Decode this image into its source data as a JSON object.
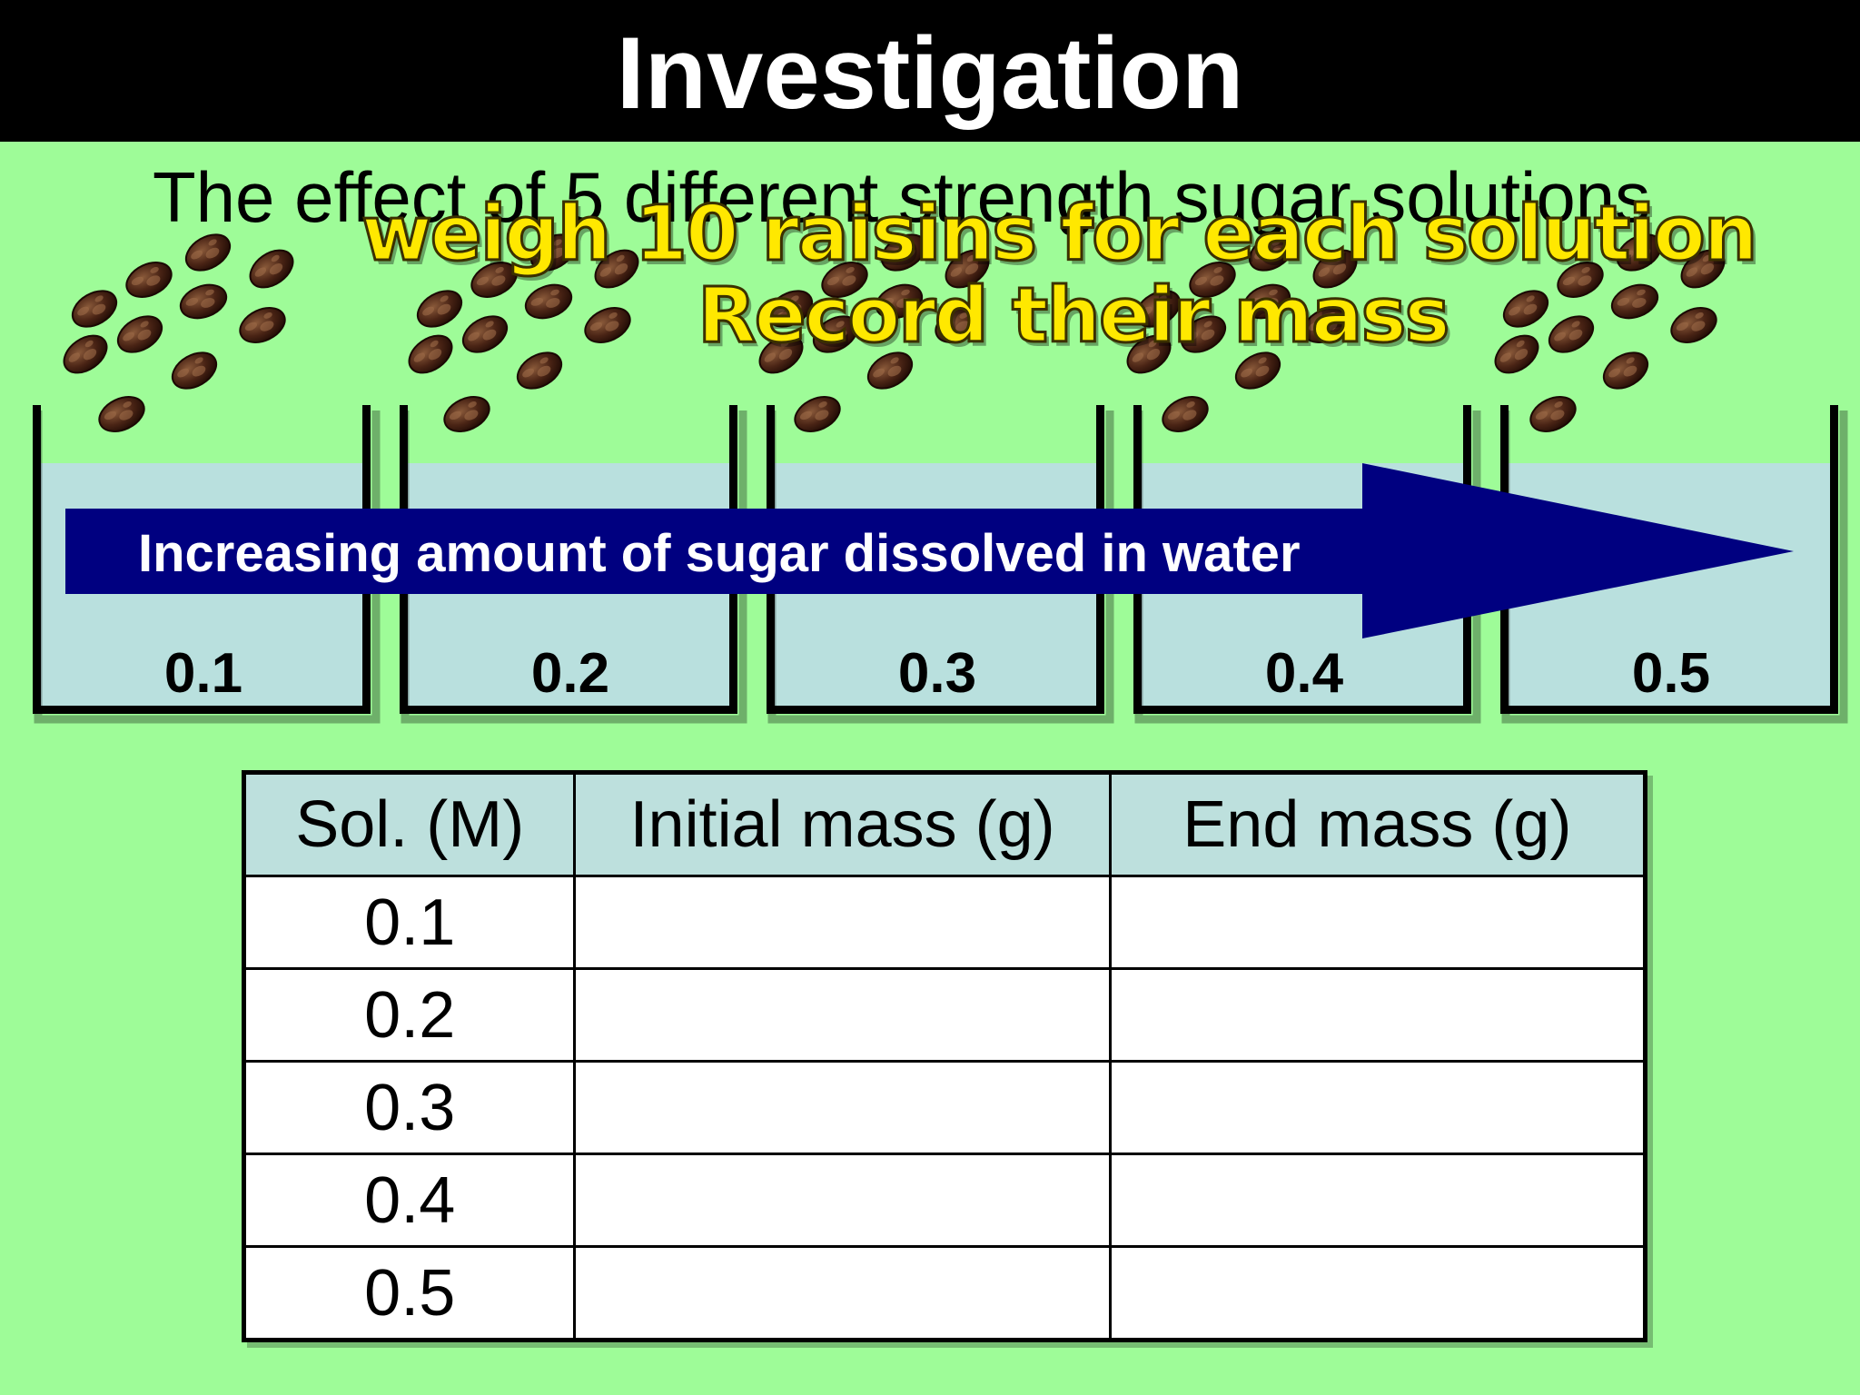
{
  "slide": {
    "title": "Investigation",
    "subtitle": "The effect of 5 different strength sugar solutions",
    "overlay_line1": "weigh 10 raisins for each solution",
    "overlay_line2": "Record their mass",
    "arrow_label": "Increasing amount of sugar dissolved in water",
    "icon_names": [
      "raisin-icon",
      "beaker-icon",
      "arrow-icon"
    ],
    "colors": {
      "background": "#9efc98",
      "title_bar": "#000000",
      "water": "#b9e0de",
      "arrow": "#000080",
      "overlay_text": "#ffe800",
      "table_header": "#bde0dd"
    }
  },
  "beakers": [
    {
      "label": "0.1"
    },
    {
      "label": "0.2"
    },
    {
      "label": "0.3"
    },
    {
      "label": "0.4"
    },
    {
      "label": "0.5"
    }
  ],
  "table": {
    "headers": [
      "Sol. (M)",
      "Initial mass (g)",
      "End mass (g)"
    ],
    "rows": [
      {
        "sol": "0.1",
        "initial": "",
        "end": ""
      },
      {
        "sol": "0.2",
        "initial": "",
        "end": ""
      },
      {
        "sol": "0.3",
        "initial": "",
        "end": ""
      },
      {
        "sol": "0.4",
        "initial": "",
        "end": ""
      },
      {
        "sol": "0.5",
        "initial": "",
        "end": ""
      }
    ]
  }
}
